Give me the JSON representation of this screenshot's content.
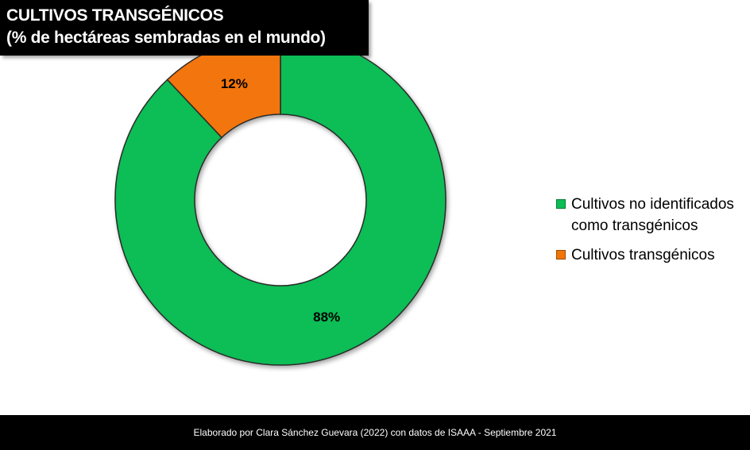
{
  "title": {
    "line1": "CULTIVOS TRANSGÉNICOS",
    "line2": "(% de hectáreas sembradas en el mundo)"
  },
  "chart_data": {
    "type": "pie",
    "donut": true,
    "title": "CULTIVOS TRANSGÉNICOS",
    "subtitle": "(% de hectáreas sembradas en el mundo)",
    "categories": [
      "Cultivos no identificados como transgénicos",
      "Cultivos transgénicos"
    ],
    "values": [
      88,
      12
    ],
    "data_labels": [
      "88%",
      "12%"
    ],
    "colors": [
      "#0CBD55",
      "#F27508"
    ],
    "legend_position": "right"
  },
  "legend": {
    "items": [
      {
        "label": "Cultivos no identificados como transgénicos",
        "color": "#0CBD55"
      },
      {
        "label": "Cultivos transgénicos",
        "color": "#F27508"
      }
    ]
  },
  "footer": {
    "text": "Elaborado por Clara Sánchez Guevara (2022) con datos de ISAAA  - Septiembre 2021"
  }
}
